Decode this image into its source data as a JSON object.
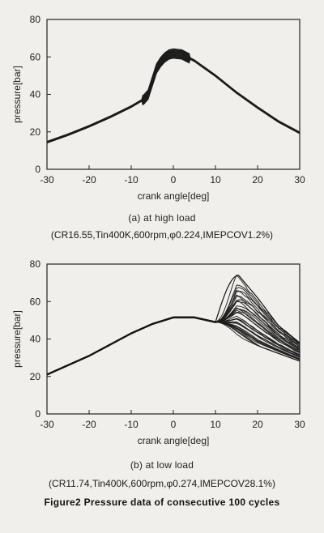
{
  "chart_data": [
    {
      "type": "line",
      "xlabel": "crank angle[deg]",
      "ylabel": "pressure[bar]",
      "xlim": [
        -30,
        30
      ],
      "ylim": [
        0,
        80
      ],
      "xticks": [
        "-30",
        "-20",
        "-10",
        "0",
        "10",
        "20",
        "30"
      ],
      "yticks": [
        "0",
        "20",
        "40",
        "60",
        "80"
      ],
      "caption": "(a) at high load",
      "params": "(CR16.55,Tin400K,600rpm,φ0.224,IMEPCOV1.2%)",
      "cycles": 100,
      "series": [
        {
          "x": [
            -30,
            -25,
            -20,
            -15,
            -10,
            -7,
            -6,
            -5,
            -4,
            -3,
            -2,
            -1,
            0,
            2,
            5,
            10,
            15,
            20,
            25,
            30
          ],
          "y": [
            14.5,
            18.5,
            23,
            28,
            33.5,
            37.5,
            40,
            47,
            54,
            57.5,
            60,
            61.5,
            62,
            61.5,
            58,
            50,
            41,
            33,
            25.5,
            19.5
          ]
        }
      ]
    },
    {
      "type": "line",
      "xlabel": "crank angle[deg]",
      "ylabel": "pressure[bar]",
      "xlim": [
        -30,
        30
      ],
      "ylim": [
        0,
        80
      ],
      "xticks": [
        "-30",
        "-20",
        "-10",
        "0",
        "10",
        "20",
        "30"
      ],
      "yticks": [
        "0",
        "20",
        "40",
        "60",
        "80"
      ],
      "caption": "(b) at low load",
      "params": "(CR11.74,Tin400K,600rpm,φ0.274,IMEPCOV28.1%)",
      "cycles": 100,
      "series": [
        {
          "x": [
            -30,
            -25,
            -20,
            -15,
            -10,
            -5,
            0,
            5,
            10
          ],
          "y": [
            21,
            26,
            31,
            37,
            43,
            48,
            51.5,
            51.5,
            49
          ]
        }
      ],
      "cycle_spread": {
        "x": [
          10,
          15,
          20,
          25,
          30
        ],
        "lowest_y": [
          49,
          41,
          36,
          32,
          28
        ],
        "highest_y": [
          49,
          74,
          60,
          47,
          38
        ],
        "peak": [
          15.5,
          74
        ]
      }
    }
  ],
  "figure_title": "Figure2   Pressure data of consecutive 100 cycles"
}
